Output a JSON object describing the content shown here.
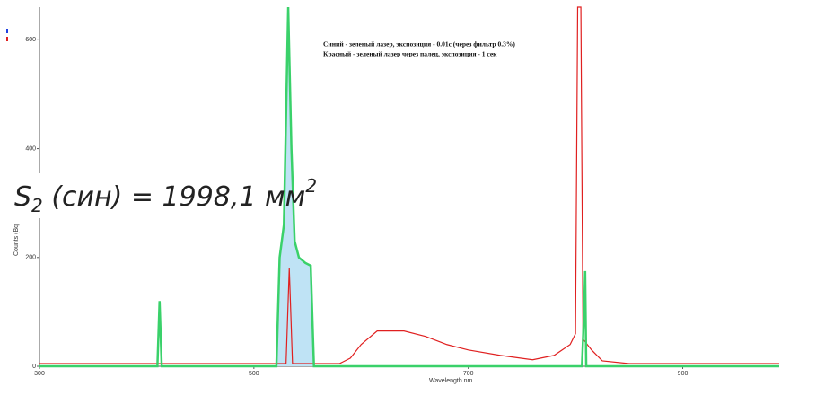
{
  "chart_data": {
    "type": "line",
    "x_label": "Wavelength nm",
    "y_label": "Counts (Bq",
    "xlim": [
      300,
      990
    ],
    "ylim": [
      0,
      660
    ],
    "xticks": [
      300,
      500,
      700,
      900
    ],
    "yticks": [
      0,
      200,
      400,
      600
    ],
    "annotations": [
      "Синий - зеленый лазер, экспозиция - 0.01с (через фильтр 0.3%)",
      "Красный - зеленый лазер через палец, экспозиция - 1 сек"
    ],
    "shaded_range": [
      521,
      556
    ],
    "series": [
      {
        "color": "#3ad16a",
        "x": [
          300,
          410,
          411,
          412,
          413,
          414,
          521,
          524,
          528,
          532,
          535,
          538,
          542,
          548,
          553,
          556,
          806,
          808,
          809,
          810,
          990
        ],
        "values": [
          0,
          0,
          60,
          120,
          60,
          0,
          0,
          200,
          260,
          660,
          400,
          230,
          200,
          190,
          185,
          0,
          0,
          100,
          175,
          0,
          0
        ]
      },
      {
        "color": "#e02020",
        "x": [
          300,
          400,
          500,
          530,
          533,
          536,
          580,
          590,
          600,
          615,
          640,
          660,
          680,
          700,
          730,
          760,
          780,
          795,
          800,
          802,
          805,
          807,
          815,
          825,
          850,
          990
        ],
        "values": [
          5,
          5,
          5,
          5,
          180,
          5,
          5,
          15,
          40,
          65,
          65,
          55,
          40,
          30,
          20,
          12,
          20,
          40,
          60,
          660,
          660,
          50,
          30,
          10,
          5,
          5
        ]
      }
    ]
  },
  "overlay": {
    "text": "S",
    "sub": "2",
    "rest": " (син) = 1998,1 мм",
    "sup": "2"
  }
}
